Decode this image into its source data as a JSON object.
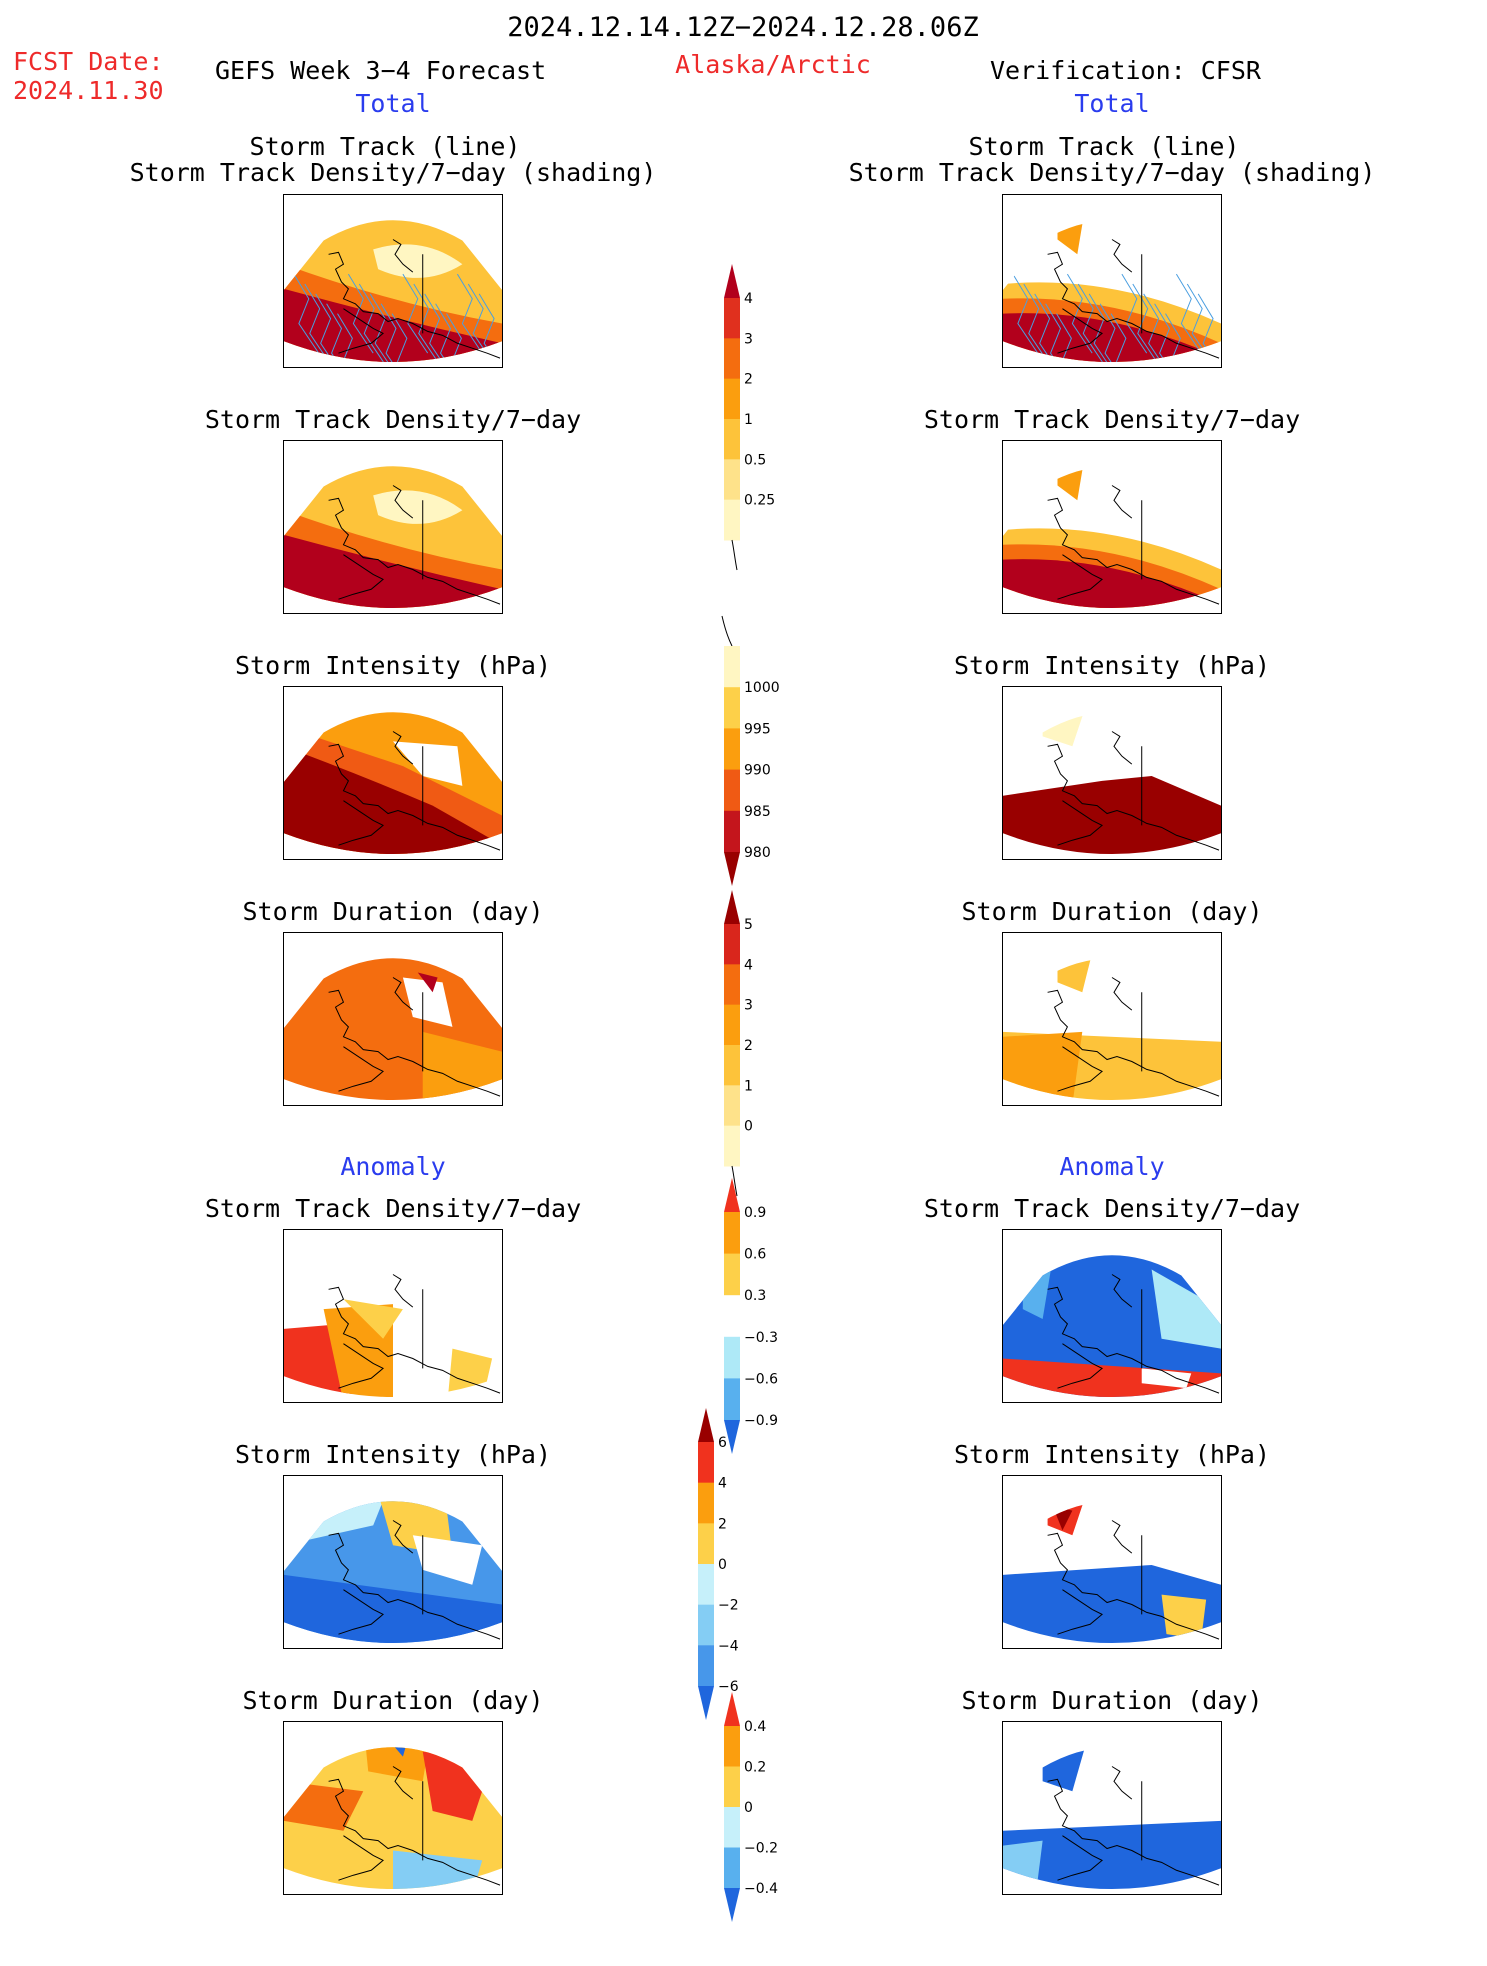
{
  "header": {
    "date_range": "2024.12.14.12Z−2024.12.28.06Z",
    "fcst_label": "FCST Date:",
    "fcst_date": "2024.11.30",
    "forecast_title": "GEFS Week 3−4 Forecast",
    "region": "Alaska/Arctic",
    "verification": "Verification: CFSR"
  },
  "sections": {
    "total": "Total",
    "anomaly": "Anomaly"
  },
  "panel_titles": {
    "track_line": "Storm Track (line)",
    "track_shading": "Storm Track Density/7−day (shading)",
    "density": "Storm Track Density/7−day",
    "intensity": "Storm Intensity (hPa)",
    "duration": "Storm Duration (day)"
  },
  "colorbars": {
    "density_total": {
      "labels": [
        "4",
        "3",
        "2",
        "1",
        "0.5",
        "0.25"
      ],
      "colors": [
        "#b2001c",
        "#e0301e",
        "#f46d0f",
        "#fb9e0e",
        "#fdc33a",
        "#fee28a",
        "#fff6c2"
      ]
    },
    "intensity_total": {
      "labels": [
        "1000",
        "995",
        "990",
        "985",
        "980"
      ],
      "colors": [
        "#fff6c2",
        "#fdd049",
        "#fb9e0e",
        "#f05a14",
        "#c4151c",
        "#990000"
      ]
    },
    "duration_total": {
      "labels": [
        "5",
        "4",
        "3",
        "2",
        "1",
        "0"
      ],
      "colors": [
        "#990000",
        "#d9261c",
        "#f46d0f",
        "#fb9e0e",
        "#fdc33a",
        "#fee28a",
        "#fff6c2"
      ]
    },
    "density_anom": {
      "labels": [
        "0.9",
        "0.6",
        "0.3",
        "−0.3",
        "−0.6",
        "−0.9"
      ],
      "colors": [
        "#f0321e",
        "#fb9e0e",
        "#fdd049",
        "#ffffff",
        "#aee9f7",
        "#58b0ee",
        "#1f66dd"
      ]
    },
    "intensity_anom": {
      "labels": [
        "6",
        "4",
        "2",
        "0",
        "−2",
        "−4",
        "−6"
      ],
      "colors": [
        "#990000",
        "#f0321e",
        "#fb9e0e",
        "#fdd049",
        "#c6f0fa",
        "#84cdf4",
        "#4797ea",
        "#1f66dd"
      ]
    },
    "duration_anom": {
      "labels": [
        "0.4",
        "0.2",
        "0",
        "−0.2",
        "−0.4"
      ],
      "colors": [
        "#f0321e",
        "#fb9e0e",
        "#fdd049",
        "#c6f0fa",
        "#58b0ee",
        "#1f66dd"
      ]
    }
  },
  "colors": {
    "title_red": "#ee2a2a",
    "title_blue": "#2a3cee",
    "track_line": "#4a9ee0"
  }
}
